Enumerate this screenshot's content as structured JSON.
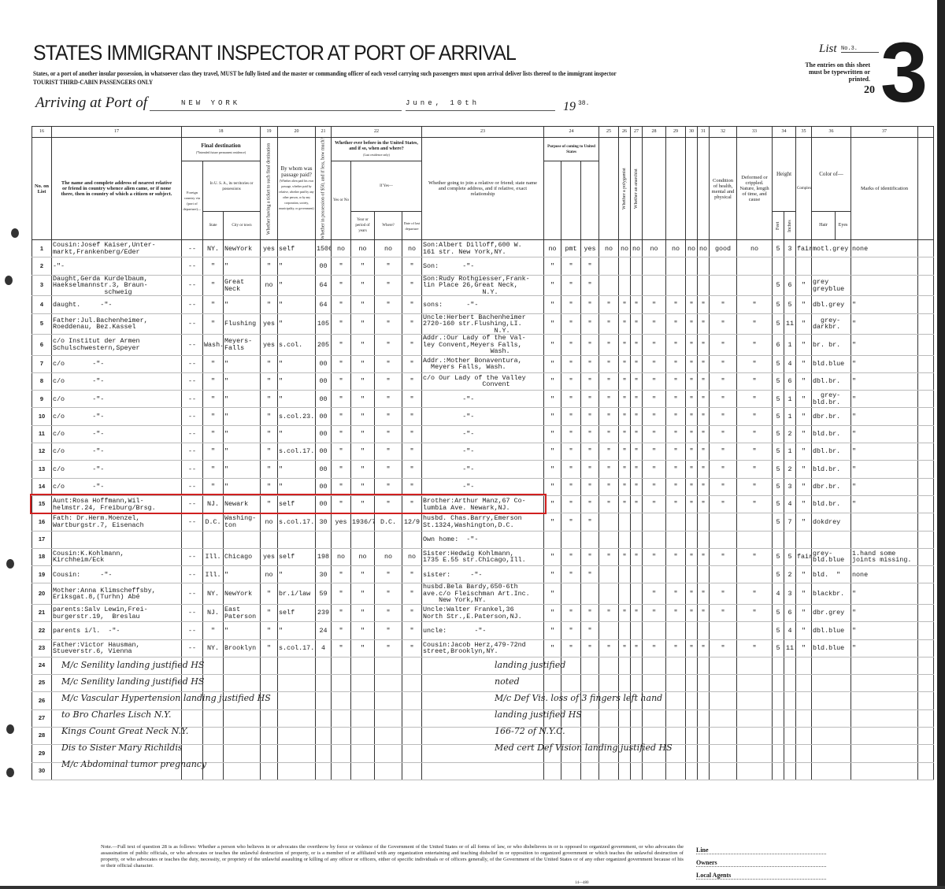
{
  "header": {
    "title": "STATES IMMIGRANT INSPECTOR AT PORT OF ARRIVAL",
    "subtitle": "States, or a port of another insular possession, in whatsoever class they travel, MUST be fully listed and the master or commanding officer of each vessel carrying such passengers must upon arrival deliver lists thereof to the immigrant inspector",
    "class_line": "TOURIST THIRD-CABIN PASSENGERS ONLY",
    "arriving_label": "Arriving at Port of",
    "port": "NEW YORK",
    "date": "June, 10th",
    "year_prefix": "19",
    "year_suffix": "38.",
    "list_label": "List",
    "list_no": "No.3.",
    "entries_note": "The entries on this sheet must be typewritten or printed.",
    "sheet_count": "20",
    "big_number": "3"
  },
  "columns": {
    "numbers": [
      "16",
      "17",
      "18",
      "19",
      "20",
      "21",
      "22",
      "23",
      "24",
      "25",
      "26",
      "27",
      "28",
      "29",
      "30",
      "31",
      "32",
      "33",
      "34",
      "35",
      "36",
      "37"
    ],
    "no_on_list": "No. on List",
    "relative": "The name and complete address of nearest relative or friend in country whence alien came, or if none there, then in country of which a citizen or subject.",
    "final_destination": "Final destination",
    "final_destination_note": "(*Intended future permanent residence)",
    "foreign_country": "Foreign country via (port of departure)—",
    "in_usa": "In U. S. A., its territories or possessions",
    "state": "State",
    "city": "City or town",
    "ticket": "Whether having a ticket to such final destination",
    "paid_by": "By whom was passage paid?",
    "paid_by_note": "(Whether alien paid his own passage, whether paid by relative, whether paid by any other person, or by any corporation, society, municipality, or government)",
    "money": "Whether in possession of $50, and if less, how much?",
    "before": "Whether ever before in the United States, and if so, when and where?",
    "before_note": "(Last residence only)",
    "yes_no": "Yes or No",
    "if_yes": "If Yes—",
    "year": "Year or period of years",
    "where": "Where?",
    "date_departure": "Date of last departure",
    "joining": "Whether going to join a relative or friend; state name and complete address, and if relative, exact relationship",
    "purpose": "Purpose of coming to United States",
    "polygamist": "Whether a polygamist",
    "anarchist": "Whether an anarchist",
    "health": "Condition of health, mental and physical",
    "deformed": "Deformed or crippled. Nature, length of time, and cause",
    "height": "Height",
    "feet": "Feet",
    "inches": "Inches",
    "complexion": "Complexion",
    "color_of": "Color of—",
    "hair": "Hair",
    "eyes": "Eyes",
    "marks": "Marks of identification"
  },
  "rows": [
    {
      "no": "1",
      "relative": "Cousin:Josef Kaiser,Unter-\nmarkt,Frankenberg/Eder",
      "foreign": "--",
      "state": "NY.",
      "city": "NewYork",
      "ticket": "yes",
      "paid_by": "self",
      "money": "1506",
      "before": "no",
      "year": "no",
      "where": "no",
      "date": "no",
      "joining": "Son:Albert Dilloff,600 W.\n161 str. New York,NY.",
      "p1": "no",
      "p2": "pmt",
      "p3": "yes",
      "c25": "no",
      "c26": "no",
      "c27": "no",
      "c28": "no",
      "c29": "no",
      "c30": "no",
      "c31": "no",
      "health": "good",
      "deformed": "no",
      "feet": "5",
      "inches": "3",
      "complexion": "fair",
      "hair_eyes": "motl.grey",
      "marks": "none"
    },
    {
      "no": "2",
      "relative": "-\"-",
      "foreign": "--",
      "state": "\"",
      "city": "\"",
      "ticket": "\"",
      "paid_by": "\"",
      "money": "00",
      "before": "\"",
      "year": "\"",
      "where": "\"",
      "date": "\"",
      "joining": "Son:      -\"-",
      "p1": "\"",
      "p2": "\"",
      "p3": "\""
    },
    {
      "no": "3",
      "relative": "Daught,Gerda Kurdelbaum,\nHaekselmannstr.3, Braun-\n             schweig",
      "foreign": "--",
      "state": "\"",
      "city": "Great\nNeck",
      "ticket": "no",
      "paid_by": "\"",
      "money": "64",
      "before": "\"",
      "year": "\"",
      "where": "\"",
      "date": "\"",
      "joining": "Son:Rudy Rothgiesser,Frank-\nlin Place 26,Great Neck,\n               N.Y.",
      "p1": "\"",
      "p2": "\"",
      "p3": "\"",
      "feet": "5",
      "inches": "6",
      "complexion": "\"",
      "hair_eyes": "grey\ngreyblue"
    },
    {
      "no": "4",
      "relative": "daught.     -\"-",
      "foreign": "--",
      "state": "\"",
      "city": "\"",
      "ticket": "\"",
      "paid_by": "\"",
      "money": "64",
      "before": "\"",
      "year": "\"",
      "where": "\"",
      "date": "\"",
      "joining": "sons:      -\"-",
      "p1": "\"",
      "p2": "\"",
      "p3": "\"",
      "c25": "\"",
      "c26": "\"",
      "c27": "\"",
      "c28": "\"",
      "c29": "\"",
      "c30": "\"",
      "c31": "\"",
      "health": "\"",
      "deformed": "\"",
      "feet": "5",
      "inches": "5",
      "complexion": "\"",
      "hair_eyes": "dbl.grey",
      "marks": "\""
    },
    {
      "no": "5",
      "relative": "Father:Jul.Bachenheimer,\nRoeddenau, Bez.Kassel",
      "foreign": "--",
      "state": "\"",
      "city": "Flushing",
      "ticket": "yes",
      "paid_by": "\"",
      "money": "105",
      "before": "\"",
      "year": "\"",
      "where": "\"",
      "date": "\"",
      "joining": "Uncle:Herbert Bachenheimer\n2720-160 str.Flushing,LI.\n                  N.Y.",
      "p1": "\"",
      "p2": "\"",
      "p3": "\"",
      "c25": "\"",
      "c26": "\"",
      "c27": "\"",
      "c28": "\"",
      "c29": "\"",
      "c30": "\"",
      "c31": "\"",
      "health": "\"",
      "deformed": "\"",
      "feet": "5",
      "inches": "11",
      "complexion": "\"",
      "hair_eyes": "  grey-\ndarkbr.",
      "marks": "\""
    },
    {
      "no": "6",
      "relative": "c/o Institut der Armen\nSchulschwestern,Speyer",
      "foreign": "--",
      "state": "Wash.",
      "city": "Meyers-\nFalls",
      "ticket": "yes",
      "paid_by": "s.col.",
      "money": "205",
      "before": "\"",
      "year": "\"",
      "where": "\"",
      "date": "\"",
      "joining": "Addr.:Our Lady of the Val-\nley Convent,Meyers Falls,\n                 Wash.",
      "p1": "\"",
      "p2": "\"",
      "p3": "\"",
      "c25": "\"",
      "c26": "\"",
      "c27": "\"",
      "c28": "\"",
      "c29": "\"",
      "c30": "\"",
      "c31": "\"",
      "health": "\"",
      "deformed": "\"",
      "feet": "6",
      "inches": "1",
      "complexion": "\"",
      "hair_eyes": "br. br.",
      "marks": "\""
    },
    {
      "no": "7",
      "relative": "c/o       -\"-",
      "foreign": "--",
      "state": "\"",
      "city": "\"",
      "ticket": "\"",
      "paid_by": "\"",
      "money": "00",
      "before": "\"",
      "year": "\"",
      "where": "\"",
      "date": "\"",
      "joining": "Addr.:Mother Bonaventura,\n  Meyers Falls, Wash.",
      "p1": "\"",
      "p2": "\"",
      "p3": "\"",
      "c25": "\"",
      "c26": "\"",
      "c27": "\"",
      "c28": "\"",
      "c29": "\"",
      "c30": "\"",
      "c31": "\"",
      "health": "\"",
      "deformed": "\"",
      "feet": "5",
      "inches": "4",
      "complexion": "\"",
      "hair_eyes": "bld.blue",
      "marks": "\""
    },
    {
      "no": "8",
      "relative": "c/o       -\"-",
      "foreign": "--",
      "state": "\"",
      "city": "\"",
      "ticket": "\"",
      "paid_by": "\"",
      "money": "00",
      "before": "\"",
      "year": "\"",
      "where": "\"",
      "date": "\"",
      "joining": "c/o Our Lady of the Valley\n               Convent",
      "p1": "\"",
      "p2": "\"",
      "p3": "\"",
      "c25": "\"",
      "c26": "\"",
      "c27": "\"",
      "c28": "\"",
      "c29": "\"",
      "c30": "\"",
      "c31": "\"",
      "health": "\"",
      "deformed": "\"",
      "feet": "5",
      "inches": "6",
      "complexion": "\"",
      "hair_eyes": "dbl.br.",
      "marks": "\""
    },
    {
      "no": "9",
      "relative": "c/o       -\"-",
      "foreign": "--",
      "state": "\"",
      "city": "\"",
      "ticket": "\"",
      "paid_by": "\"",
      "money": "00",
      "before": "\"",
      "year": "\"",
      "where": "\"",
      "date": "\"",
      "joining": "          -\"-",
      "p1": "\"",
      "p2": "\"",
      "p3": "\"",
      "c25": "\"",
      "c26": "\"",
      "c27": "\"",
      "c28": "\"",
      "c29": "\"",
      "c30": "\"",
      "c31": "\"",
      "health": "\"",
      "deformed": "\"",
      "feet": "5",
      "inches": "1",
      "complexion": "\"",
      "hair_eyes": "  grey-\nbld.br.",
      "marks": "\""
    },
    {
      "no": "10",
      "relative": "c/o       -\"-",
      "foreign": "--",
      "state": "\"",
      "city": "\"",
      "ticket": "\"",
      "paid_by": "s.col.23.",
      "money": "00",
      "before": "\"",
      "year": "\"",
      "where": "\"",
      "date": "\"",
      "joining": "          -\"-",
      "p1": "\"",
      "p2": "\"",
      "p3": "\"",
      "c25": "\"",
      "c26": "\"",
      "c27": "\"",
      "c28": "\"",
      "c29": "\"",
      "c30": "\"",
      "c31": "\"",
      "health": "\"",
      "deformed": "\"",
      "feet": "5",
      "inches": "1",
      "complexion": "\"",
      "hair_eyes": "dbr.br.",
      "marks": "\""
    },
    {
      "no": "11",
      "relative": "c/o       -\"-",
      "foreign": "--",
      "state": "\"",
      "city": "\"",
      "ticket": "\"",
      "paid_by": "\"",
      "money": "00",
      "before": "\"",
      "year": "\"",
      "where": "\"",
      "date": "\"",
      "joining": "          -\"-",
      "p1": "\"",
      "p2": "\"",
      "p3": "\"",
      "c25": "\"",
      "c26": "\"",
      "c27": "\"",
      "c28": "\"",
      "c29": "\"",
      "c30": "\"",
      "c31": "\"",
      "health": "\"",
      "deformed": "\"",
      "feet": "5",
      "inches": "2",
      "complexion": "\"",
      "hair_eyes": "bld.br.",
      "marks": "\""
    },
    {
      "no": "12",
      "relative": "c/o       -\"-",
      "foreign": "--",
      "state": "\"",
      "city": "\"",
      "ticket": "\"",
      "paid_by": "s.col.17.",
      "money": "00",
      "before": "\"",
      "year": "\"",
      "where": "\"",
      "date": "\"",
      "joining": "          -\"-",
      "p1": "\"",
      "p2": "\"",
      "p3": "\"",
      "c25": "\"",
      "c26": "\"",
      "c27": "\"",
      "c28": "\"",
      "c29": "\"",
      "c30": "\"",
      "c31": "\"",
      "health": "\"",
      "deformed": "\"",
      "feet": "5",
      "inches": "1",
      "complexion": "\"",
      "hair_eyes": "dbl.br.",
      "marks": "\""
    },
    {
      "no": "13",
      "relative": "c/o       -\"-",
      "foreign": "--",
      "state": "\"",
      "city": "\"",
      "ticket": "\"",
      "paid_by": "\"",
      "money": "00",
      "before": "\"",
      "year": "\"",
      "where": "\"",
      "date": "\"",
      "joining": "          -\"-",
      "p1": "\"",
      "p2": "\"",
      "p3": "\"",
      "c25": "\"",
      "c26": "\"",
      "c27": "\"",
      "c28": "\"",
      "c29": "\"",
      "c30": "\"",
      "c31": "\"",
      "health": "\"",
      "deformed": "\"",
      "feet": "5",
      "inches": "2",
      "complexion": "\"",
      "hair_eyes": "bld.br.",
      "marks": "\""
    },
    {
      "no": "14",
      "relative": "c/o       -\"-",
      "foreign": "--",
      "state": "\"",
      "city": "\"",
      "ticket": "\"",
      "paid_by": "\"",
      "money": "00",
      "before": "\"",
      "year": "\"",
      "where": "\"",
      "date": "\"",
      "joining": "          -\"-",
      "p1": "\"",
      "p2": "\"",
      "p3": "\"",
      "c25": "\"",
      "c26": "\"",
      "c27": "\"",
      "c28": "\"",
      "c29": "\"",
      "c30": "\"",
      "c31": "\"",
      "health": "\"",
      "deformed": "\"",
      "feet": "5",
      "inches": "3",
      "complexion": "\"",
      "hair_eyes": "dbr.br.",
      "marks": "\""
    },
    {
      "no": "15",
      "relative": "Aunt:Rosa Hoffmann,Wil-\nhelmstr.24, Freiburg/Brsg.",
      "foreign": "--",
      "state": "NJ.",
      "city": "Newark",
      "ticket": "\"",
      "paid_by": "self",
      "money": "00",
      "before": "\"",
      "year": "\"",
      "where": "\"",
      "date": "\"",
      "joining": "Brother:Arthur Manz,67 Co-\nlumbia Ave. Newark,NJ.",
      "p1": "\"",
      "p2": "\"",
      "p3": "\"",
      "c25": "\"",
      "c26": "\"",
      "c27": "\"",
      "c28": "\"",
      "c29": "\"",
      "c30": "\"",
      "c31": "\"",
      "health": "\"",
      "deformed": "\"",
      "feet": "5",
      "inches": "4",
      "complexion": "\"",
      "hair_eyes": "bld.br.",
      "marks": "\""
    },
    {
      "no": "16",
      "relative": "Fath: Dr.Herm.Moenzel,\nWartburgstr.7, Eisenach",
      "foreign": "--",
      "state": "D.C.",
      "city": "Washing-\nton",
      "ticket": "no",
      "paid_by": "s.col.17.",
      "money": "30",
      "before": "yes",
      "year": "1936/7",
      "where": "D.C.",
      "date": "12/9",
      "joining": "husbd. Chas.Barry,Emerson\nSt.1324,Washington,D.C.",
      "p1": "\"",
      "p2": "\"",
      "p3": "\"",
      "feet": "5",
      "inches": "7",
      "complexion": "\"",
      "hair_eyes": "dokdrey"
    },
    {
      "no": "17",
      "joining": "Own home:  -\"-"
    },
    {
      "no": "18",
      "relative": "Cousin:K.Kohlmann,\nKirchheim/Eck",
      "foreign": "--",
      "state": "Ill.",
      "city": "Chicago",
      "ticket": "yes",
      "paid_by": "self",
      "money": "198",
      "before": "no",
      "year": "no",
      "where": "no",
      "date": "no",
      "joining": "Sister:Hedwig Kohlmann,\n1735 E.55 str.Chicago,Ill.",
      "p1": "\"",
      "p2": "\"",
      "p3": "\"",
      "c25": "\"",
      "c26": "\"",
      "c27": "\"",
      "c28": "\"",
      "c29": "\"",
      "c30": "\"",
      "c31": "\"",
      "health": "\"",
      "deformed": "\"",
      "feet": "5",
      "inches": "5",
      "complexion": "fair",
      "hair_eyes": "grey-\nbld.blue",
      "marks": "1.hand some\njoints missing."
    },
    {
      "no": "19",
      "relative": "Cousin:     -\"-",
      "foreign": "--",
      "state": "Ill.",
      "city": "\"",
      "ticket": "no",
      "paid_by": "\"",
      "money": "30",
      "before": "\"",
      "year": "\"",
      "where": "\"",
      "date": "\"",
      "joining": "sister:     -\"-",
      "p1": "\"",
      "p2": "\"",
      "p3": "\"",
      "feet": "5",
      "inches": "2",
      "complexion": "\"",
      "hair_eyes": "bld.  \"",
      "marks": "none"
    },
    {
      "no": "20",
      "relative": "Mother:Anna Klimscheffsby,\nEriksgat.8,(Turhn) Abé",
      "foreign": "--",
      "state": "NY.",
      "city": "NewYork",
      "ticket": "\"",
      "paid_by": "br.i/law",
      "money": "59",
      "before": "\"",
      "year": "\"",
      "where": "\"",
      "date": "\"",
      "joining": "husbd.Bela Bardy,650-6th\nave.c/o Fleischman Art.Inc.\n    New York,NY.",
      "p1": "\"",
      "c28": "\"",
      "c29": "\"",
      "c30": "\"",
      "c31": "\"",
      "health": "\"",
      "deformed": "\"",
      "feet": "4",
      "inches": "3",
      "complexion": "\"",
      "hair_eyes": "blackbr.",
      "marks": "\""
    },
    {
      "no": "21",
      "relative": "parents:Salv Lewin,Frei-\nburgerstr.19,  Breslau",
      "foreign": "--",
      "state": "NJ.",
      "city": "East\nPaterson",
      "ticket": "\"",
      "paid_by": "self",
      "money": "239",
      "before": "\"",
      "year": "\"",
      "where": "\"",
      "date": "\"",
      "joining": "Uncle:Walter Frankel,36\nNorth Str.,E.Paterson,NJ.",
      "p1": "\"",
      "p2": "\"",
      "p3": "\"",
      "c25": "\"",
      "c26": "\"",
      "c27": "\"",
      "c28": "\"",
      "c29": "\"",
      "c30": "\"",
      "c31": "\"",
      "health": "\"",
      "deformed": "\"",
      "feet": "5",
      "inches": "6",
      "complexion": "\"",
      "hair_eyes": "dbr.grey",
      "marks": "\""
    },
    {
      "no": "22",
      "relative": "parents i/l.  -\"-",
      "foreign": "--",
      "state": "\"",
      "city": "\"",
      "ticket": "\"",
      "paid_by": "\"",
      "money": "24",
      "before": "\"",
      "year": "\"",
      "where": "\"",
      "date": "\"",
      "joining": "uncle:       -\"-",
      "p1": "\"",
      "p2": "\"",
      "p3": "\"",
      "feet": "5",
      "inches": "4",
      "complexion": "\"",
      "hair_eyes": "dbl.blue",
      "marks": "\""
    },
    {
      "no": "23",
      "relative": "Father:Victor Hausman,\nStueverstr.6, Vienna",
      "foreign": "--",
      "state": "NY.",
      "city": "Brooklyn",
      "ticket": "\"",
      "paid_by": "s.col.17.",
      "money": "4",
      "before": "\"",
      "year": "\"",
      "where": "\"",
      "date": "\"",
      "joining": "Cousin:Jacob Herz,479-72nd\nstreet,Brooklyn,NY.",
      "p1": "\"",
      "p2": "\"",
      "p3": "\"",
      "c25": "\"",
      "c26": "\"",
      "c27": "\"",
      "c28": "\"",
      "c29": "\"",
      "c30": "\"",
      "c31": "\"",
      "health": "\"",
      "deformed": "\"",
      "feet": "5",
      "inches": "11",
      "complexion": "\"",
      "hair_eyes": "bld.blue",
      "marks": "\""
    },
    {
      "no": "24"
    },
    {
      "no": "25"
    },
    {
      "no": "26"
    },
    {
      "no": "27"
    },
    {
      "no": "28"
    },
    {
      "no": "29"
    },
    {
      "no": "30"
    }
  ],
  "handwritten": {
    "row1": "M/c Senility landing justified HS",
    "row2": "M/c Senility landing justified HS",
    "row3": "M/c Vascular Hypertension landing justified HS",
    "row4a": "to Bro Charles Lisch N.Y.",
    "row4b": "Kings Count Great Neck N.Y.",
    "row8": "Dis to Sister Mary Richildis",
    "row16a": "M/c Abdominal tumor pregnancy",
    "row16b": "landing justified",
    "row19a": "M/c Def Vis. loss of 3 fingers left hand",
    "row19b": "landing justified HS",
    "row20": "166-72 of N.Y.C.",
    "row22": "Med cert Def Vision landing justified HS",
    "row18_margin": "noted"
  },
  "highlight": {
    "row": "15",
    "color": "#d02020"
  },
  "footer": {
    "note": "Note.—Full text of question 28 is as follows: Whether a person who believes in or advocates the overthrow by force or violence of the Government of the United States or of all forms of law, or who disbelieves in or is opposed to organized government, or who advocates the assassination of public officials, or who advocates or teaches the unlawful destruction of property, or is a member of or affiliated with any organization entertaining and teaching disbelief in or opposition to organized government or which teaches the unlawful destruction of property, or who advocates or teaches the duty, necessity, or propriety of the unlawful assaulting or killing of any officer or officers, either of specific individuals or of officers generally, of the Government of the United States or of any other organized government because of his or their official character.",
    "form_number": "14—480",
    "line_label": "Line",
    "owners_label": "Owners",
    "agents_label": "Local Agents"
  }
}
